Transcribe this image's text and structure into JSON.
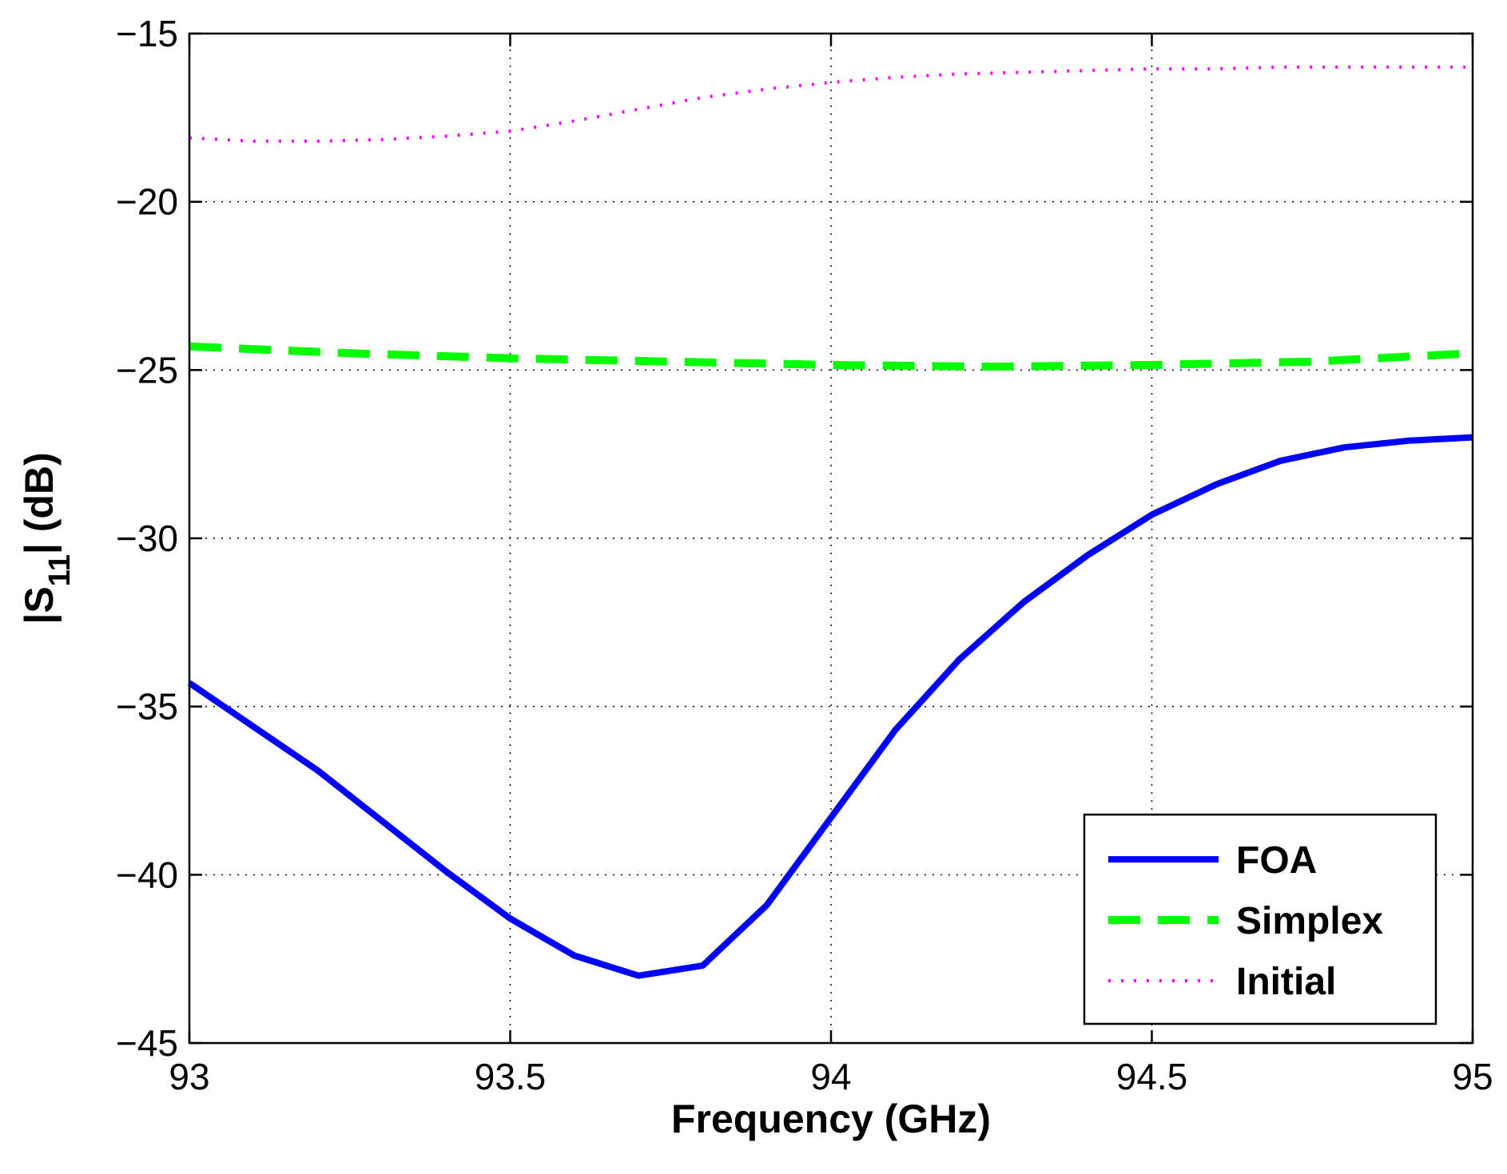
{
  "chart_data": {
    "type": "line",
    "title": "",
    "xlabel": "Frequency (GHz)",
    "ylabel_main": "|S",
    "ylabel_sub": "11",
    "ylabel_tail": "| (dB)",
    "xlim": [
      93,
      95
    ],
    "ylim": [
      -45,
      -15
    ],
    "xticks": [
      93,
      93.5,
      94,
      94.5,
      95
    ],
    "yticks": [
      -45,
      -40,
      -35,
      -30,
      -25,
      -20,
      -15
    ],
    "xtick_labels": [
      "93",
      "93.5",
      "94",
      "94.5",
      "95"
    ],
    "ytick_labels": [
      "−45",
      "−40",
      "−35",
      "−30",
      "−25",
      "−20",
      "−15"
    ],
    "grid": true,
    "legend_position": "bottom-right",
    "series": [
      {
        "name": "FOA",
        "color": "#0000ff",
        "style": "solid",
        "x": [
          93.0,
          93.1,
          93.2,
          93.3,
          93.4,
          93.5,
          93.6,
          93.7,
          93.8,
          93.9,
          94.0,
          94.1,
          94.2,
          94.3,
          94.4,
          94.5,
          94.6,
          94.7,
          94.8,
          94.9,
          95.0
        ],
        "values": [
          -34.3,
          -35.6,
          -36.9,
          -38.4,
          -39.9,
          -41.3,
          -42.4,
          -43.0,
          -42.7,
          -40.9,
          -38.3,
          -35.7,
          -33.6,
          -31.9,
          -30.5,
          -29.3,
          -28.4,
          -27.7,
          -27.3,
          -27.1,
          -27.0
        ]
      },
      {
        "name": "Simplex",
        "color": "#00ff00",
        "style": "dashed",
        "x": [
          93.0,
          93.25,
          93.5,
          93.75,
          94.0,
          94.25,
          94.5,
          94.75,
          95.0
        ],
        "values": [
          -24.3,
          -24.5,
          -24.65,
          -24.75,
          -24.85,
          -24.9,
          -24.85,
          -24.75,
          -24.5
        ]
      },
      {
        "name": "Initial",
        "color": "#ff00ff",
        "style": "dotted",
        "x": [
          93.0,
          93.1,
          93.2,
          93.3,
          93.4,
          93.5,
          93.6,
          93.7,
          93.8,
          93.9,
          94.0,
          94.1,
          94.2,
          94.3,
          94.4,
          94.5,
          94.6,
          94.7,
          94.8,
          94.9,
          95.0
        ],
        "values": [
          -18.1,
          -18.2,
          -18.2,
          -18.15,
          -18.05,
          -17.9,
          -17.6,
          -17.25,
          -16.9,
          -16.65,
          -16.45,
          -16.3,
          -16.2,
          -16.15,
          -16.1,
          -16.05,
          -16.05,
          -16.0,
          -16.0,
          -16.0,
          -16.0
        ]
      }
    ]
  }
}
